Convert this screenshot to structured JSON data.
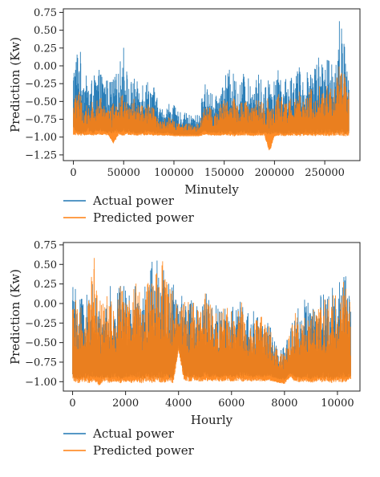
{
  "chart_data": [
    {
      "type": "line",
      "xlabel": "Minutely",
      "ylabel": "Prediction (Kw)",
      "xlim": [
        -10000,
        285000
      ],
      "ylim": [
        -1.33,
        0.8
      ],
      "xticks": [
        0,
        50000,
        100000,
        150000,
        200000,
        250000
      ],
      "yticks": [
        -1.25,
        -1.0,
        -0.75,
        -0.5,
        -0.25,
        0.0,
        0.25,
        0.5,
        0.75
      ],
      "xtick_labels": [
        "0",
        "50000",
        "100000",
        "150000",
        "200000",
        "250000"
      ],
      "ytick_labels": [
        "−1.25",
        "−1.00",
        "−0.75",
        "−0.50",
        "−0.25",
        "0.00",
        "0.25",
        "0.50",
        "0.75"
      ],
      "grid": false,
      "legend_position": "below-left",
      "series": [
        {
          "name": "Actual power",
          "color": "#1f77b4",
          "x": [
            0,
            5000,
            10000,
            15000,
            20000,
            25000,
            30000,
            35000,
            40000,
            45000,
            50000,
            55000,
            60000,
            65000,
            70000,
            75000,
            80000,
            85000,
            90000,
            95000,
            100000,
            105000,
            110000,
            115000,
            120000,
            125000,
            130000,
            135000,
            140000,
            145000,
            150000,
            155000,
            160000,
            165000,
            170000,
            175000,
            180000,
            185000,
            190000,
            195000,
            200000,
            205000,
            210000,
            215000,
            220000,
            225000,
            230000,
            235000,
            240000,
            245000,
            250000,
            255000,
            260000,
            265000,
            270000,
            274000
          ],
          "max": [
            0.05,
            0.4,
            -0.05,
            -0.2,
            -0.15,
            -0.05,
            -0.1,
            -0.2,
            -0.15,
            -0.05,
            0.35,
            -0.25,
            -0.15,
            -0.25,
            -0.1,
            -0.2,
            -0.25,
            -0.55,
            -0.6,
            -0.5,
            -0.55,
            -0.65,
            -0.65,
            -0.68,
            -0.68,
            -0.68,
            -0.25,
            -0.2,
            -0.5,
            -0.3,
            -0.15,
            -0.05,
            -0.1,
            -0.25,
            -0.05,
            -0.2,
            -0.15,
            -0.1,
            -0.3,
            -0.05,
            -0.2,
            0.0,
            -0.2,
            -0.1,
            -0.05,
            0.0,
            -0.2,
            0.1,
            0.1,
            0.25,
            -0.05,
            0.25,
            0.1,
            0.75,
            0.3,
            -0.15
          ],
          "min": [
            -0.9,
            -0.95,
            -0.95,
            -0.92,
            -0.95,
            -0.92,
            -0.93,
            -0.95,
            -0.95,
            -0.93,
            -0.95,
            -0.93,
            -0.95,
            -0.95,
            -0.95,
            -0.92,
            -0.95,
            -0.95,
            -0.95,
            -0.95,
            -0.97,
            -0.97,
            -0.97,
            -0.97,
            -0.97,
            -0.97,
            -0.92,
            -0.95,
            -0.95,
            -0.95,
            -0.95,
            -0.95,
            -0.96,
            -0.95,
            -0.95,
            -0.95,
            -0.96,
            -0.95,
            -0.95,
            -0.97,
            -0.96,
            -0.95,
            -0.97,
            -0.95,
            -0.95,
            -0.96,
            -0.95,
            -0.95,
            -0.96,
            -0.95,
            -0.95,
            -0.96,
            -0.95,
            -0.95,
            -0.96,
            -0.95
          ]
        },
        {
          "name": "Predicted power",
          "color": "#ff7f0e",
          "x": [
            0,
            5000,
            10000,
            15000,
            20000,
            25000,
            30000,
            35000,
            40000,
            45000,
            50000,
            55000,
            60000,
            65000,
            70000,
            75000,
            80000,
            85000,
            90000,
            95000,
            100000,
            105000,
            110000,
            115000,
            120000,
            125000,
            130000,
            135000,
            140000,
            145000,
            150000,
            155000,
            160000,
            165000,
            170000,
            175000,
            180000,
            185000,
            190000,
            195000,
            200000,
            205000,
            210000,
            215000,
            220000,
            225000,
            230000,
            235000,
            240000,
            245000,
            250000,
            255000,
            260000,
            265000,
            270000,
            274000
          ],
          "max": [
            -0.45,
            -0.3,
            -0.5,
            -0.55,
            -0.45,
            -0.4,
            -0.5,
            -0.55,
            -0.5,
            -0.45,
            -0.35,
            -0.55,
            -0.45,
            -0.55,
            -0.45,
            -0.55,
            -0.55,
            -0.75,
            -0.75,
            -0.7,
            -0.75,
            -0.8,
            -0.8,
            -0.8,
            -0.8,
            -0.82,
            -0.55,
            -0.5,
            -0.7,
            -0.55,
            -0.45,
            -0.45,
            -0.45,
            -0.55,
            -0.4,
            -0.55,
            -0.5,
            -0.45,
            -0.55,
            -0.4,
            -0.55,
            -0.35,
            -0.5,
            -0.45,
            -0.4,
            -0.35,
            -0.5,
            -0.3,
            -0.3,
            -0.2,
            -0.4,
            -0.15,
            -0.3,
            0.05,
            -0.1,
            -0.4
          ],
          "min": [
            -0.97,
            -0.98,
            -0.98,
            -0.97,
            -0.98,
            -0.97,
            -0.97,
            -0.98,
            -1.1,
            -0.97,
            -0.98,
            -0.97,
            -0.98,
            -0.98,
            -0.98,
            -0.97,
            -0.98,
            -0.98,
            -0.98,
            -0.98,
            -0.99,
            -0.99,
            -0.99,
            -0.99,
            -0.99,
            -0.99,
            -0.97,
            -0.98,
            -0.98,
            -0.98,
            -0.98,
            -0.98,
            -0.99,
            -0.98,
            -0.98,
            -0.98,
            -0.99,
            -0.98,
            -0.98,
            -1.22,
            -0.99,
            -0.98,
            -0.99,
            -0.98,
            -0.98,
            -0.99,
            -0.98,
            -0.98,
            -0.99,
            -0.98,
            -0.98,
            -0.99,
            -0.98,
            -0.98,
            -0.99,
            -0.98
          ]
        }
      ]
    },
    {
      "type": "line",
      "xlabel": "Hourly",
      "ylabel": "Prediction (Kw)",
      "xlim": [
        -350,
        10850
      ],
      "ylim": [
        -1.12,
        0.78
      ],
      "xticks": [
        0,
        2000,
        4000,
        6000,
        8000,
        10000
      ],
      "yticks": [
        -1.0,
        -0.75,
        -0.5,
        -0.25,
        0.0,
        0.25,
        0.5,
        0.75
      ],
      "xtick_labels": [
        "0",
        "2000",
        "4000",
        "6000",
        "8000",
        "10000"
      ],
      "ytick_labels": [
        "−1.00",
        "−0.75",
        "−0.50",
        "−0.25",
        "0.00",
        "0.25",
        "0.50",
        "0.75"
      ],
      "grid": false,
      "legend_position": "below-left",
      "series": [
        {
          "name": "Actual power",
          "color": "#1f77b4",
          "x": [
            0,
            200,
            400,
            600,
            800,
            1000,
            1200,
            1400,
            1600,
            1800,
            2000,
            2200,
            2400,
            2600,
            2800,
            3000,
            3200,
            3400,
            3600,
            3800,
            4000,
            4200,
            4400,
            4600,
            4800,
            5000,
            5200,
            5400,
            5600,
            5800,
            6000,
            6200,
            6400,
            6600,
            6800,
            7000,
            7200,
            7400,
            7600,
            7800,
            8000,
            8200,
            8400,
            8600,
            8800,
            9000,
            9200,
            9400,
            9600,
            9800,
            10000,
            10200,
            10400,
            10500
          ],
          "max": [
            0.35,
            0.05,
            0.2,
            0.1,
            0.4,
            0.15,
            0.1,
            0.25,
            0.05,
            0.3,
            0.2,
            0.1,
            0.4,
            0.2,
            0.3,
            0.6,
            0.55,
            0.6,
            0.45,
            0.3,
            -0.05,
            0.25,
            0.05,
            0.1,
            -0.05,
            0.2,
            0.05,
            0.0,
            -0.05,
            0.05,
            -0.05,
            0.0,
            0.1,
            -0.05,
            -0.1,
            -0.05,
            -0.15,
            -0.2,
            -0.45,
            -0.6,
            -0.55,
            -0.35,
            0.0,
            -0.1,
            0.1,
            0.05,
            0.0,
            0.2,
            0.05,
            0.25,
            0.1,
            0.7,
            0.3,
            0.0
          ],
          "min": [
            -0.95,
            -0.97,
            -0.95,
            -0.96,
            -0.95,
            -0.97,
            -0.95,
            -0.96,
            -0.95,
            -0.97,
            -0.95,
            -0.96,
            -0.95,
            -0.97,
            -0.95,
            -0.96,
            -0.95,
            -0.97,
            -0.95,
            -0.96,
            -0.55,
            -0.92,
            -0.95,
            -0.94,
            -0.95,
            -0.93,
            -0.95,
            -0.94,
            -0.95,
            -0.93,
            -0.95,
            -0.94,
            -0.95,
            -0.93,
            -0.95,
            -0.94,
            -0.95,
            -0.93,
            -0.95,
            -0.97,
            -0.98,
            -0.9,
            -0.95,
            -0.96,
            -0.95,
            -0.97,
            -0.95,
            -0.96,
            -0.95,
            -0.97,
            -0.95,
            -0.96,
            -0.95,
            -0.95
          ]
        },
        {
          "name": "Predicted power",
          "color": "#ff7f0e",
          "x": [
            0,
            200,
            400,
            600,
            800,
            1000,
            1200,
            1400,
            1600,
            1800,
            2000,
            2200,
            2400,
            2600,
            2800,
            3000,
            3200,
            3400,
            3600,
            3800,
            4000,
            4200,
            4400,
            4600,
            4800,
            5000,
            5200,
            5400,
            5600,
            5800,
            6000,
            6200,
            6400,
            6600,
            6800,
            7000,
            7200,
            7400,
            7600,
            7800,
            8000,
            8200,
            8400,
            8600,
            8800,
            9000,
            9200,
            9400,
            9600,
            9800,
            10000,
            10200,
            10400,
            10500
          ],
          "max": [
            0.2,
            0.0,
            0.1,
            0.05,
            0.65,
            0.1,
            0.05,
            0.2,
            0.0,
            0.25,
            0.15,
            0.05,
            0.35,
            0.15,
            0.25,
            0.45,
            0.4,
            0.55,
            0.4,
            0.25,
            -0.15,
            0.2,
            0.0,
            0.05,
            -0.1,
            0.15,
            0.0,
            -0.05,
            -0.1,
            0.0,
            -0.1,
            -0.05,
            0.05,
            -0.1,
            -0.15,
            -0.1,
            -0.2,
            -0.25,
            -0.5,
            -0.65,
            -0.6,
            -0.4,
            -0.05,
            -0.15,
            0.05,
            0.0,
            -0.05,
            0.15,
            0.0,
            0.2,
            0.05,
            0.35,
            0.25,
            -0.05
          ],
          "min": [
            -1.0,
            -1.02,
            -1.0,
            -1.02,
            -1.0,
            -1.05,
            -1.0,
            -1.02,
            -1.0,
            -1.02,
            -1.0,
            -1.02,
            -1.0,
            -1.02,
            -1.0,
            -1.02,
            -1.0,
            -1.02,
            -1.0,
            -1.02,
            -0.6,
            -0.98,
            -1.0,
            -0.99,
            -1.0,
            -0.99,
            -1.0,
            -0.99,
            -1.0,
            -0.99,
            -1.0,
            -0.99,
            -1.0,
            -0.99,
            -1.0,
            -0.99,
            -1.0,
            -0.99,
            -1.0,
            -1.02,
            -1.03,
            -0.95,
            -1.0,
            -1.01,
            -1.0,
            -1.02,
            -1.0,
            -1.01,
            -1.0,
            -1.02,
            -1.0,
            -1.01,
            -1.0,
            -1.0
          ]
        }
      ]
    }
  ]
}
